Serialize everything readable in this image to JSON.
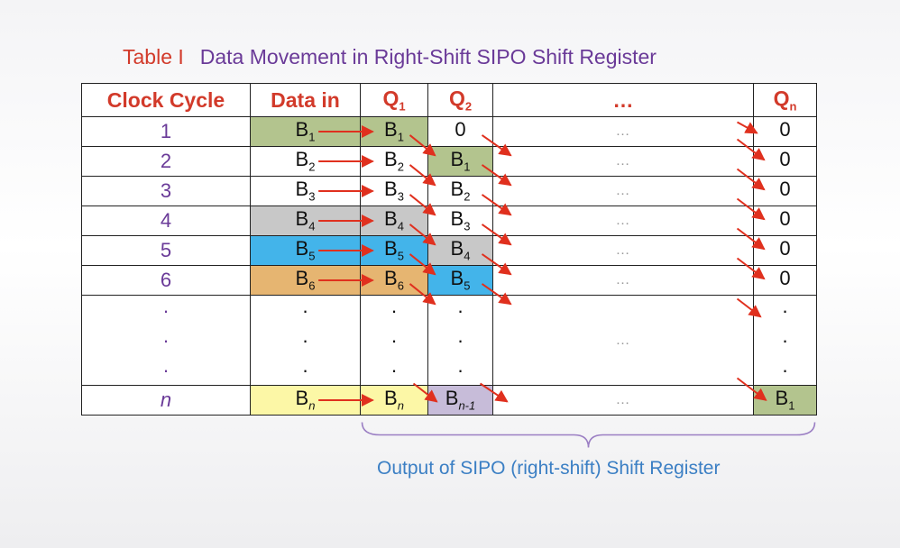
{
  "caption": {
    "label": "Table I",
    "title": "Data Movement in Right-Shift SIPO Shift Register"
  },
  "headers": {
    "clock_cycle": "Clock Cycle",
    "data_in": "Data in",
    "q1": {
      "base": "Q",
      "sub": "1"
    },
    "q2": {
      "base": "Q",
      "sub": "2"
    },
    "ellipsis": "…",
    "qn": {
      "base": "Q",
      "sub": "n"
    }
  },
  "rows": [
    {
      "cycle": "1",
      "data_in": {
        "base": "B",
        "sub": "1"
      },
      "q1": {
        "base": "B",
        "sub": "1"
      },
      "q2": {
        "base": "0",
        "sub": ""
      },
      "ellipsis": "…",
      "qn": {
        "base": "0",
        "sub": ""
      }
    },
    {
      "cycle": "2",
      "data_in": {
        "base": "B",
        "sub": "2"
      },
      "q1": {
        "base": "B",
        "sub": "2"
      },
      "q2": {
        "base": "B",
        "sub": "1"
      },
      "ellipsis": "…",
      "qn": {
        "base": "0",
        "sub": ""
      }
    },
    {
      "cycle": "3",
      "data_in": {
        "base": "B",
        "sub": "3"
      },
      "q1": {
        "base": "B",
        "sub": "3"
      },
      "q2": {
        "base": "B",
        "sub": "2"
      },
      "ellipsis": "…",
      "qn": {
        "base": "0",
        "sub": ""
      }
    },
    {
      "cycle": "4",
      "data_in": {
        "base": "B",
        "sub": "4"
      },
      "q1": {
        "base": "B",
        "sub": "4"
      },
      "q2": {
        "base": "B",
        "sub": "3"
      },
      "ellipsis": "…",
      "qn": {
        "base": "0",
        "sub": ""
      }
    },
    {
      "cycle": "5",
      "data_in": {
        "base": "B",
        "sub": "5"
      },
      "q1": {
        "base": "B",
        "sub": "5"
      },
      "q2": {
        "base": "B",
        "sub": "4"
      },
      "ellipsis": "…",
      "qn": {
        "base": "0",
        "sub": ""
      }
    },
    {
      "cycle": "6",
      "data_in": {
        "base": "B",
        "sub": "6"
      },
      "q1": {
        "base": "B",
        "sub": "6"
      },
      "q2": {
        "base": "B",
        "sub": "5"
      },
      "ellipsis": "…",
      "qn": {
        "base": "0",
        "sub": ""
      }
    }
  ],
  "dots": {
    "mark": "·",
    "ellipsis": "…"
  },
  "last_row": {
    "cycle": "n",
    "data_in": {
      "base": "B",
      "sub": "n"
    },
    "q1": {
      "base": "B",
      "sub": "n"
    },
    "q2": {
      "base": "B",
      "sub": "n-1"
    },
    "ellipsis": "…",
    "qn": {
      "base": "B",
      "sub": "1"
    }
  },
  "footer": "Output of SIPO (right-shift) Shift Register",
  "colors": {
    "label_red": "#d23a2a",
    "title_purple": "#6a3a98",
    "green": "#b3c48e",
    "gray": "#c8c8c8",
    "blue": "#43b4ea",
    "orange": "#e6b571",
    "yellow": "#fcf7a6",
    "lavender": "#c7bcd9",
    "arrow_red": "#e0301e",
    "brace_purple": "#9b7fc4",
    "footer_blue": "#3b7fc4"
  }
}
